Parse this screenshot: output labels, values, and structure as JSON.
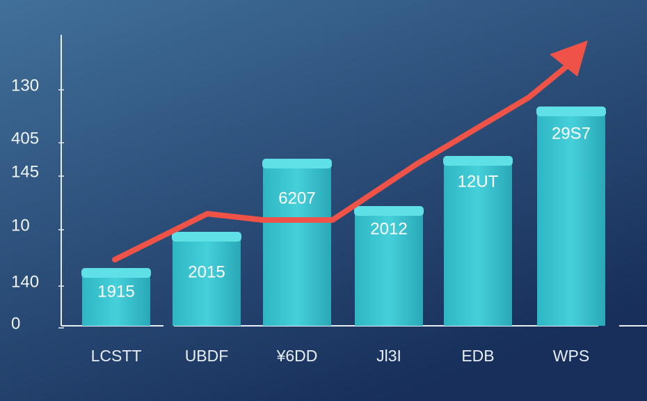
{
  "y_labels": [
    "130",
    "405",
    "145",
    "10",
    "140",
    "0"
  ],
  "bars": [
    {
      "category": "LCSTT",
      "label": "1915"
    },
    {
      "category": "UBDF",
      "label": "2015"
    },
    {
      "category": "¥6DD",
      "label": "6207"
    },
    {
      "category": "Jl3I",
      "label": "2012"
    },
    {
      "category": "EDB",
      "label": "12UT"
    },
    {
      "category": "WPS",
      "label": "29S7"
    }
  ]
}
